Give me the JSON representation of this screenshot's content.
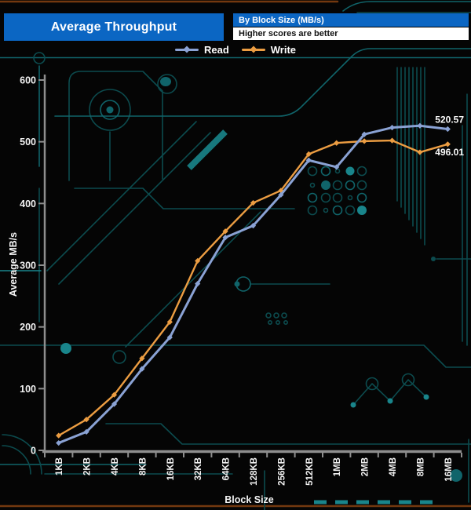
{
  "header": {
    "title": "Average Throughput",
    "subtitle_line1": "By Block Size (MB/s)",
    "subtitle_line2": "Higher scores are better"
  },
  "legend": [
    {
      "label": "Read",
      "color": "#8aa2d4"
    },
    {
      "label": "Write",
      "color": "#ec9d42"
    }
  ],
  "colors": {
    "header_blue": "#0b66c3",
    "read": "#8aa2d4",
    "write": "#ec9d42",
    "axis": "#8e8e8e",
    "tick_text": "#f2f2f2",
    "background": "#050505",
    "circuit_dim": "#0c4b4e",
    "circuit_mid": "#10646a",
    "circuit_bright": "#19858b",
    "edge_brown": "#73380f"
  },
  "chart_data": {
    "type": "line",
    "title": "Average Throughput",
    "subtitle": "By Block Size (MB/s) — Higher scores are better",
    "categories": [
      "1KB",
      "2KB",
      "4KB",
      "8KB",
      "16KB",
      "32KB",
      "64KB",
      "128KB",
      "256KB",
      "512KB",
      "1MB",
      "2MB",
      "4MB",
      "8MB",
      "16MB"
    ],
    "series": [
      {
        "name": "Read",
        "color": "#8aa2d4",
        "values": [
          12,
          30,
          75,
          132,
          183,
          270,
          345,
          364,
          414,
          470,
          459,
          512,
          523,
          526,
          520.57
        ],
        "end_label": "520.57"
      },
      {
        "name": "Write",
        "color": "#ec9d42",
        "values": [
          24,
          50,
          90,
          149,
          208,
          307,
          355,
          401,
          421,
          480,
          498,
          501,
          502,
          483,
          496.01
        ],
        "end_label": "496.01"
      }
    ],
    "xlabel": "Block Size",
    "ylabel": "Average MB/s",
    "ylim": [
      0,
      600
    ],
    "yticks": [
      0,
      100,
      200,
      300,
      400,
      500,
      600
    ],
    "grid": false,
    "legend_position": "top"
  }
}
